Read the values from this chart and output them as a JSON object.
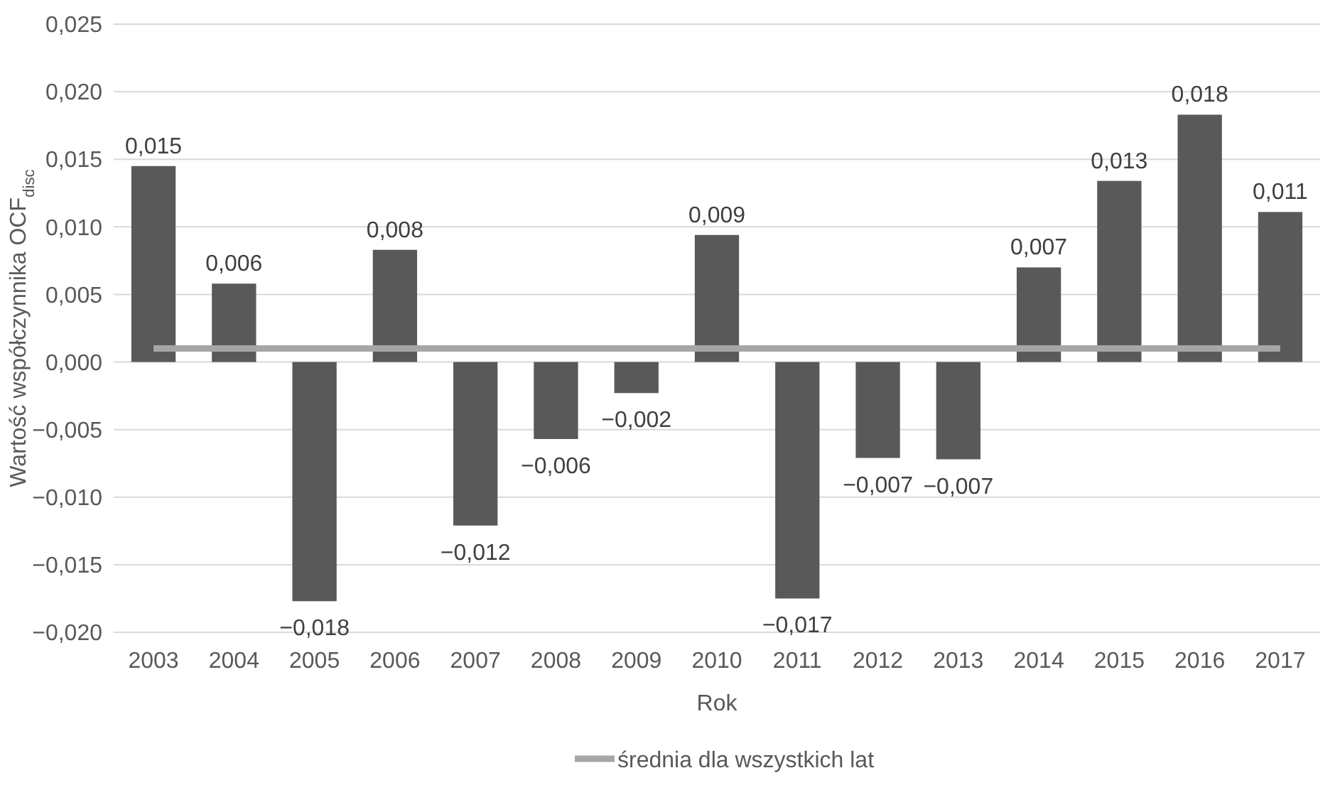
{
  "chart_data": {
    "type": "bar",
    "xlabel": "Rok",
    "ylabel": "Wartość współczynnika OCF$_{disc}$",
    "categories": [
      "2003",
      "2004",
      "2005",
      "2006",
      "2007",
      "2008",
      "2009",
      "2010",
      "2011",
      "2012",
      "2013",
      "2014",
      "2015",
      "2016",
      "2017"
    ],
    "series": [
      {
        "color": "#595959",
        "values": [
          0.0145,
          0.0058,
          -0.0177,
          0.0083,
          -0.0121,
          -0.0057,
          -0.0023,
          0.0094,
          -0.0175,
          -0.0071,
          -0.0072,
          0.007,
          0.0134,
          0.0183,
          0.0111
        ],
        "value_labels": [
          "0,015",
          "0,006",
          "−0,018",
          "0,008",
          "−0,012",
          "−0,006",
          "−0,002",
          "0,009",
          "−0,017",
          "−0,007",
          "−0,007",
          "0,007",
          "0,013",
          "0,018",
          "0,011"
        ]
      },
      {
        "type": "line",
        "name": "średnia dla wszystkich lat",
        "color": "#a6a6a6",
        "values": [
          0.001,
          0.001,
          0.001,
          0.001,
          0.001,
          0.001,
          0.001,
          0.001,
          0.001,
          0.001,
          0.001,
          0.001,
          0.001,
          0.001,
          0.001
        ]
      }
    ],
    "ylim": [
      -0.02,
      0.025
    ],
    "yticks": [
      {
        "value": -0.02,
        "label": "−0,020"
      },
      {
        "value": -0.015,
        "label": "−0,015"
      },
      {
        "value": -0.01,
        "label": "−0,010"
      },
      {
        "value": -0.005,
        "label": "−0,005"
      },
      {
        "value": 0,
        "label": "0,000"
      },
      {
        "value": 0.005,
        "label": "0,005"
      },
      {
        "value": 0.01,
        "label": "0,010"
      },
      {
        "value": 0.015,
        "label": "0,015"
      },
      {
        "value": 0.02,
        "label": "0,020"
      },
      {
        "value": 0.025,
        "label": "0,025"
      }
    ],
    "grid": "y",
    "legend": "bottom"
  }
}
